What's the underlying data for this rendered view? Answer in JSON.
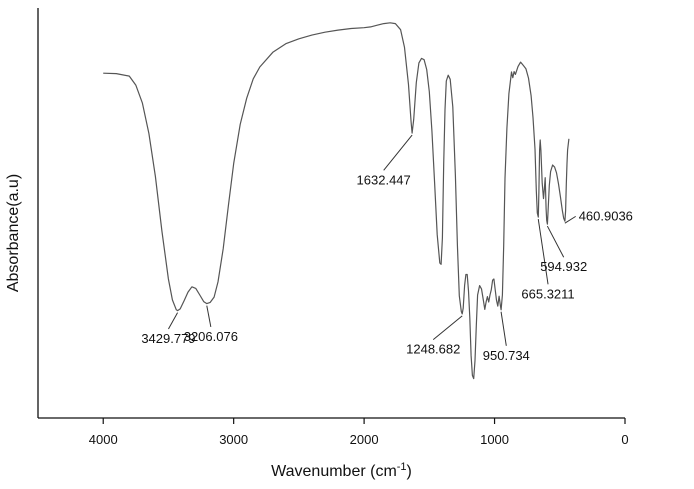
{
  "chart_data": {
    "type": "line",
    "xlabel": "Wavenumber (cm",
    "xlabel_sup": "-1",
    "xlabel_close": ")",
    "ylabel": "Absorbance(a.u)",
    "xlim": [
      4500,
      0
    ],
    "ylim": [
      0,
      1
    ],
    "x_reversed": true,
    "x_ticks": [
      {
        "value": 4000,
        "label": "4000"
      },
      {
        "value": 3000,
        "label": "3000"
      },
      {
        "value": 2000,
        "label": "2000"
      },
      {
        "value": 1000,
        "label": "1000"
      },
      {
        "value": 0,
        "label": "0"
      }
    ],
    "grid": false,
    "series": [
      {
        "color": "#555555",
        "points": [
          [
            4000,
            0.841
          ],
          [
            3900,
            0.84
          ],
          [
            3800,
            0.834
          ],
          [
            3750,
            0.812
          ],
          [
            3700,
            0.768
          ],
          [
            3650,
            0.694
          ],
          [
            3600,
            0.589
          ],
          [
            3550,
            0.456
          ],
          [
            3500,
            0.339
          ],
          [
            3470,
            0.288
          ],
          [
            3440,
            0.264
          ],
          [
            3430,
            0.262
          ],
          [
            3410,
            0.266
          ],
          [
            3380,
            0.286
          ],
          [
            3350,
            0.307
          ],
          [
            3320,
            0.32
          ],
          [
            3290,
            0.316
          ],
          [
            3260,
            0.3
          ],
          [
            3230,
            0.284
          ],
          [
            3206,
            0.279
          ],
          [
            3180,
            0.282
          ],
          [
            3150,
            0.295
          ],
          [
            3120,
            0.332
          ],
          [
            3080,
            0.413
          ],
          [
            3040,
            0.518
          ],
          [
            3000,
            0.621
          ],
          [
            2950,
            0.716
          ],
          [
            2900,
            0.78
          ],
          [
            2850,
            0.827
          ],
          [
            2800,
            0.856
          ],
          [
            2700,
            0.892
          ],
          [
            2600,
            0.913
          ],
          [
            2500,
            0.925
          ],
          [
            2400,
            0.934
          ],
          [
            2300,
            0.941
          ],
          [
            2200,
            0.946
          ],
          [
            2100,
            0.95
          ],
          [
            2000,
            0.952
          ],
          [
            1950,
            0.954
          ],
          [
            1900,
            0.958
          ],
          [
            1850,
            0.962
          ],
          [
            1800,
            0.964
          ],
          [
            1760,
            0.962
          ],
          [
            1720,
            0.947
          ],
          [
            1690,
            0.904
          ],
          [
            1660,
            0.813
          ],
          [
            1640,
            0.722
          ],
          [
            1632,
            0.695
          ],
          [
            1620,
            0.728
          ],
          [
            1600,
            0.818
          ],
          [
            1580,
            0.866
          ],
          [
            1560,
            0.877
          ],
          [
            1540,
            0.874
          ],
          [
            1520,
            0.85
          ],
          [
            1500,
            0.796
          ],
          [
            1480,
            0.701
          ],
          [
            1460,
            0.574
          ],
          [
            1440,
            0.447
          ],
          [
            1420,
            0.378
          ],
          [
            1410,
            0.375
          ],
          [
            1400,
            0.439
          ],
          [
            1390,
            0.62
          ],
          [
            1380,
            0.752
          ],
          [
            1370,
            0.822
          ],
          [
            1355,
            0.836
          ],
          [
            1340,
            0.826
          ],
          [
            1320,
            0.759
          ],
          [
            1300,
            0.591
          ],
          [
            1285,
            0.422
          ],
          [
            1270,
            0.298
          ],
          [
            1255,
            0.26
          ],
          [
            1248,
            0.254
          ],
          [
            1240,
            0.268
          ],
          [
            1230,
            0.323
          ],
          [
            1220,
            0.35
          ],
          [
            1210,
            0.35
          ],
          [
            1200,
            0.31
          ],
          [
            1190,
            0.245
          ],
          [
            1180,
            0.152
          ],
          [
            1170,
            0.104
          ],
          [
            1160,
            0.096
          ],
          [
            1150,
            0.14
          ],
          [
            1140,
            0.225
          ],
          [
            1130,
            0.3
          ],
          [
            1115,
            0.323
          ],
          [
            1100,
            0.315
          ],
          [
            1085,
            0.285
          ],
          [
            1075,
            0.265
          ],
          [
            1065,
            0.283
          ],
          [
            1055,
            0.296
          ],
          [
            1045,
            0.283
          ],
          [
            1035,
            0.3
          ],
          [
            1025,
            0.313
          ],
          [
            1015,
            0.336
          ],
          [
            1005,
            0.339
          ],
          [
            995,
            0.313
          ],
          [
            985,
            0.287
          ],
          [
            975,
            0.273
          ],
          [
            965,
            0.297
          ],
          [
            955,
            0.274
          ],
          [
            950,
            0.264
          ],
          [
            940,
            0.3
          ],
          [
            930,
            0.421
          ],
          [
            920,
            0.585
          ],
          [
            905,
            0.706
          ],
          [
            890,
            0.791
          ],
          [
            870,
            0.844
          ],
          [
            860,
            0.83
          ],
          [
            850,
            0.845
          ],
          [
            840,
            0.838
          ],
          [
            820,
            0.857
          ],
          [
            800,
            0.868
          ],
          [
            780,
            0.86
          ],
          [
            760,
            0.852
          ],
          [
            740,
            0.829
          ],
          [
            720,
            0.786
          ],
          [
            705,
            0.733
          ],
          [
            690,
            0.656
          ],
          [
            680,
            0.555
          ],
          [
            672,
            0.5
          ],
          [
            665,
            0.49
          ],
          [
            660,
            0.553
          ],
          [
            655,
            0.653
          ],
          [
            650,
            0.678
          ],
          [
            645,
            0.653
          ],
          [
            635,
            0.573
          ],
          [
            625,
            0.535
          ],
          [
            618,
            0.56
          ],
          [
            612,
            0.586
          ],
          [
            605,
            0.51
          ],
          [
            600,
            0.482
          ],
          [
            595,
            0.473
          ],
          [
            590,
            0.501
          ],
          [
            580,
            0.567
          ],
          [
            570,
            0.601
          ],
          [
            555,
            0.617
          ],
          [
            540,
            0.612
          ],
          [
            525,
            0.598
          ],
          [
            510,
            0.571
          ],
          [
            495,
            0.54
          ],
          [
            480,
            0.505
          ],
          [
            470,
            0.487
          ],
          [
            461,
            0.48
          ],
          [
            455,
            0.505
          ],
          [
            450,
            0.57
          ],
          [
            445,
            0.621
          ],
          [
            440,
            0.654
          ],
          [
            430,
            0.681
          ]
        ]
      }
    ],
    "annotations": [
      {
        "label": "3429.779",
        "x": 3430,
        "y": 0.262,
        "text_x": 3500,
        "text_y": 0.183,
        "anchor": "middle"
      },
      {
        "label": "3206.076",
        "x": 3206,
        "y": 0.279,
        "text_x": 3175,
        "text_y": 0.188,
        "anchor": "middle"
      },
      {
        "label": "1632.447",
        "x": 1632,
        "y": 0.695,
        "text_x": 1850,
        "text_y": 0.57,
        "anchor": "middle"
      },
      {
        "label": "1248.682",
        "x": 1248,
        "y": 0.254,
        "text_x": 1470,
        "text_y": 0.157,
        "anchor": "middle"
      },
      {
        "label": "950.734",
        "x": 950,
        "y": 0.264,
        "text_x": 910,
        "text_y": 0.142,
        "anchor": "middle"
      },
      {
        "label": "665.3211",
        "x": 665,
        "y": 0.49,
        "text_x": 590,
        "text_y": 0.292,
        "anchor": "middle"
      },
      {
        "label": "594.932",
        "x": 595,
        "y": 0.473,
        "text_x": 470,
        "text_y": 0.358,
        "anchor": "middle"
      },
      {
        "label": "460.9036",
        "x": 461,
        "y": 0.48,
        "text_x": 355,
        "text_y": 0.482,
        "anchor": "start"
      }
    ]
  }
}
